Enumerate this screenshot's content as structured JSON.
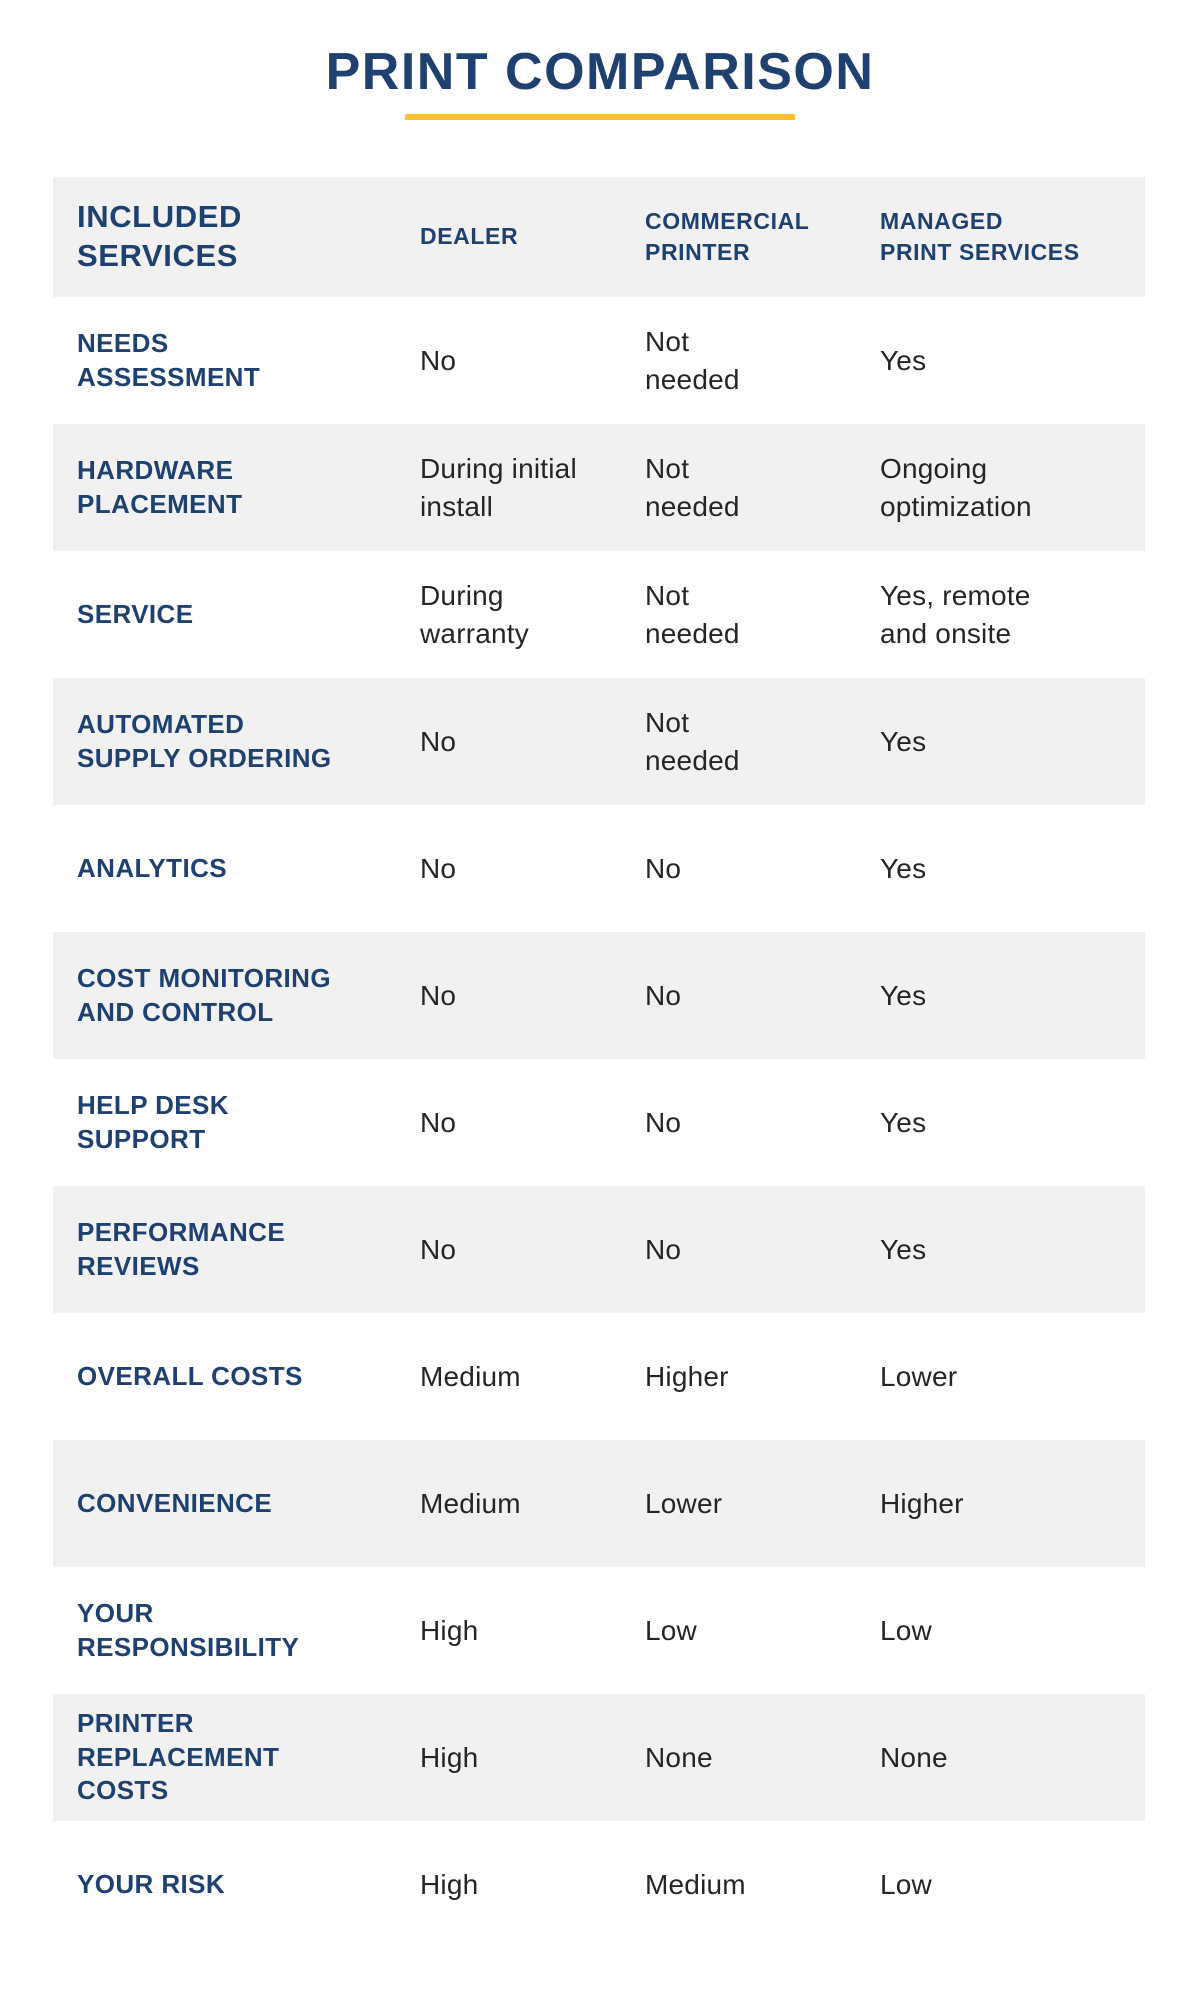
{
  "title": "PRINT COMPARISON",
  "colors": {
    "navy": "#1E4170",
    "accent_yellow": "#FDBE2C",
    "row_shade": "#F2F1F1",
    "value_text": "#272425"
  },
  "table": {
    "headers": [
      "INCLUDED\nSERVICES",
      "DEALER",
      "COMMERCIAL\nPRINTER",
      "MANAGED\nPRINT SERVICES"
    ],
    "rows": [
      {
        "label": "NEEDS\nASSESSMENT",
        "values": [
          "No",
          "Not\nneeded",
          "Yes"
        ]
      },
      {
        "label": "HARDWARE\nPLACEMENT",
        "values": [
          "During initial\ninstall",
          "Not\nneeded",
          "Ongoing\noptimization"
        ]
      },
      {
        "label": "SERVICE",
        "values": [
          "During\nwarranty",
          "Not\nneeded",
          "Yes, remote\nand onsite"
        ]
      },
      {
        "label": "AUTOMATED\nSUPPLY ORDERING",
        "values": [
          "No",
          "Not\nneeded",
          "Yes"
        ]
      },
      {
        "label": "ANALYTICS",
        "values": [
          "No",
          "No",
          "Yes"
        ]
      },
      {
        "label": "COST MONITORING\nAND CONTROL",
        "values": [
          "No",
          "No",
          "Yes"
        ]
      },
      {
        "label": "HELP DESK\nSUPPORT",
        "values": [
          "No",
          "No",
          "Yes"
        ]
      },
      {
        "label": "PERFORMANCE\nREVIEWS",
        "values": [
          "No",
          "No",
          "Yes"
        ]
      },
      {
        "label": "OVERALL COSTS",
        "values": [
          "Medium",
          "Higher",
          "Lower"
        ]
      },
      {
        "label": "CONVENIENCE",
        "values": [
          "Medium",
          "Lower",
          "Higher"
        ]
      },
      {
        "label": "YOUR\nRESPONSIBILITY",
        "values": [
          "High",
          "Low",
          "Low"
        ]
      },
      {
        "label": "PRINTER\nREPLACEMENT\nCOSTS",
        "values": [
          "High",
          "None",
          "None"
        ]
      },
      {
        "label": "YOUR RISK",
        "values": [
          "High",
          "Medium",
          "Low"
        ]
      }
    ]
  },
  "chart_data": {
    "type": "table",
    "title": "PRINT COMPARISON",
    "columns": [
      "Included Services",
      "Dealer",
      "Commercial Printer",
      "Managed Print Services"
    ],
    "rows": [
      [
        "Needs Assessment",
        "No",
        "Not needed",
        "Yes"
      ],
      [
        "Hardware Placement",
        "During initial install",
        "Not needed",
        "Ongoing optimization"
      ],
      [
        "Service",
        "During warranty",
        "Not needed",
        "Yes, remote and onsite"
      ],
      [
        "Automated Supply Ordering",
        "No",
        "Not needed",
        "Yes"
      ],
      [
        "Analytics",
        "No",
        "No",
        "Yes"
      ],
      [
        "Cost Monitoring and Control",
        "No",
        "No",
        "Yes"
      ],
      [
        "Help Desk Support",
        "No",
        "No",
        "Yes"
      ],
      [
        "Performance Reviews",
        "No",
        "No",
        "Yes"
      ],
      [
        "Overall Costs",
        "Medium",
        "Higher",
        "Lower"
      ],
      [
        "Convenience",
        "Medium",
        "Lower",
        "Higher"
      ],
      [
        "Your Responsibility",
        "High",
        "Low",
        "Low"
      ],
      [
        "Printer Replacement Costs",
        "High",
        "None",
        "None"
      ],
      [
        "Your Risk",
        "High",
        "Medium",
        "Low"
      ]
    ],
    "layout": "alternating row shading, header row shaded, no gridlines"
  }
}
